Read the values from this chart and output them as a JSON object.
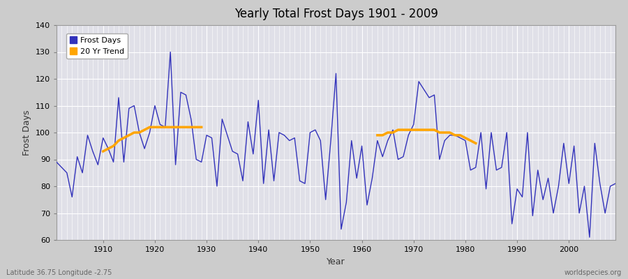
{
  "title": "Yearly Total Frost Days 1901 - 2009",
  "xlabel": "Year",
  "ylabel": "Frost Days",
  "xlim": [
    1901,
    2009
  ],
  "ylim": [
    60,
    140
  ],
  "yticks": [
    60,
    70,
    80,
    90,
    100,
    110,
    120,
    130,
    140
  ],
  "line_color": "#3333bb",
  "trend_color": "#FFA500",
  "footer_left": "Latitude 36.75 Longitude -2.75",
  "footer_right": "worldspecies.org",
  "frost_days": [
    89,
    87,
    85,
    76,
    91,
    85,
    99,
    93,
    88,
    98,
    94,
    89,
    113,
    89,
    109,
    110,
    100,
    94,
    100,
    110,
    103,
    102,
    130,
    88,
    115,
    114,
    105,
    90,
    89,
    99,
    98,
    80,
    105,
    99,
    93,
    92,
    82,
    104,
    92,
    112,
    81,
    101,
    82,
    100,
    99,
    97,
    98,
    82,
    81,
    100,
    101,
    97,
    75,
    97,
    122,
    64,
    74,
    97,
    83,
    95,
    73,
    83,
    97,
    91,
    97,
    101,
    90,
    91,
    99,
    103,
    119,
    116,
    113,
    114,
    90,
    97,
    99,
    99,
    98,
    97,
    86,
    87,
    100,
    79,
    100,
    86,
    87,
    100,
    66,
    79,
    76,
    100,
    69,
    86,
    75,
    83,
    70,
    80,
    96,
    81,
    95,
    70,
    80,
    61,
    96,
    81,
    70,
    80,
    81
  ],
  "frost_start_year": 1901,
  "trend1_start": 1910,
  "trend1_values": [
    93,
    94,
    95,
    97,
    98,
    99,
    100,
    100,
    101,
    102,
    102,
    102,
    102,
    102,
    102,
    102,
    102,
    102,
    102,
    102
  ],
  "trend2_start": 1963,
  "trend2_values": [
    99,
    99,
    100,
    100,
    101,
    101,
    101,
    101,
    101,
    101,
    101,
    101,
    100,
    100,
    100,
    99,
    99,
    98,
    97,
    96
  ]
}
